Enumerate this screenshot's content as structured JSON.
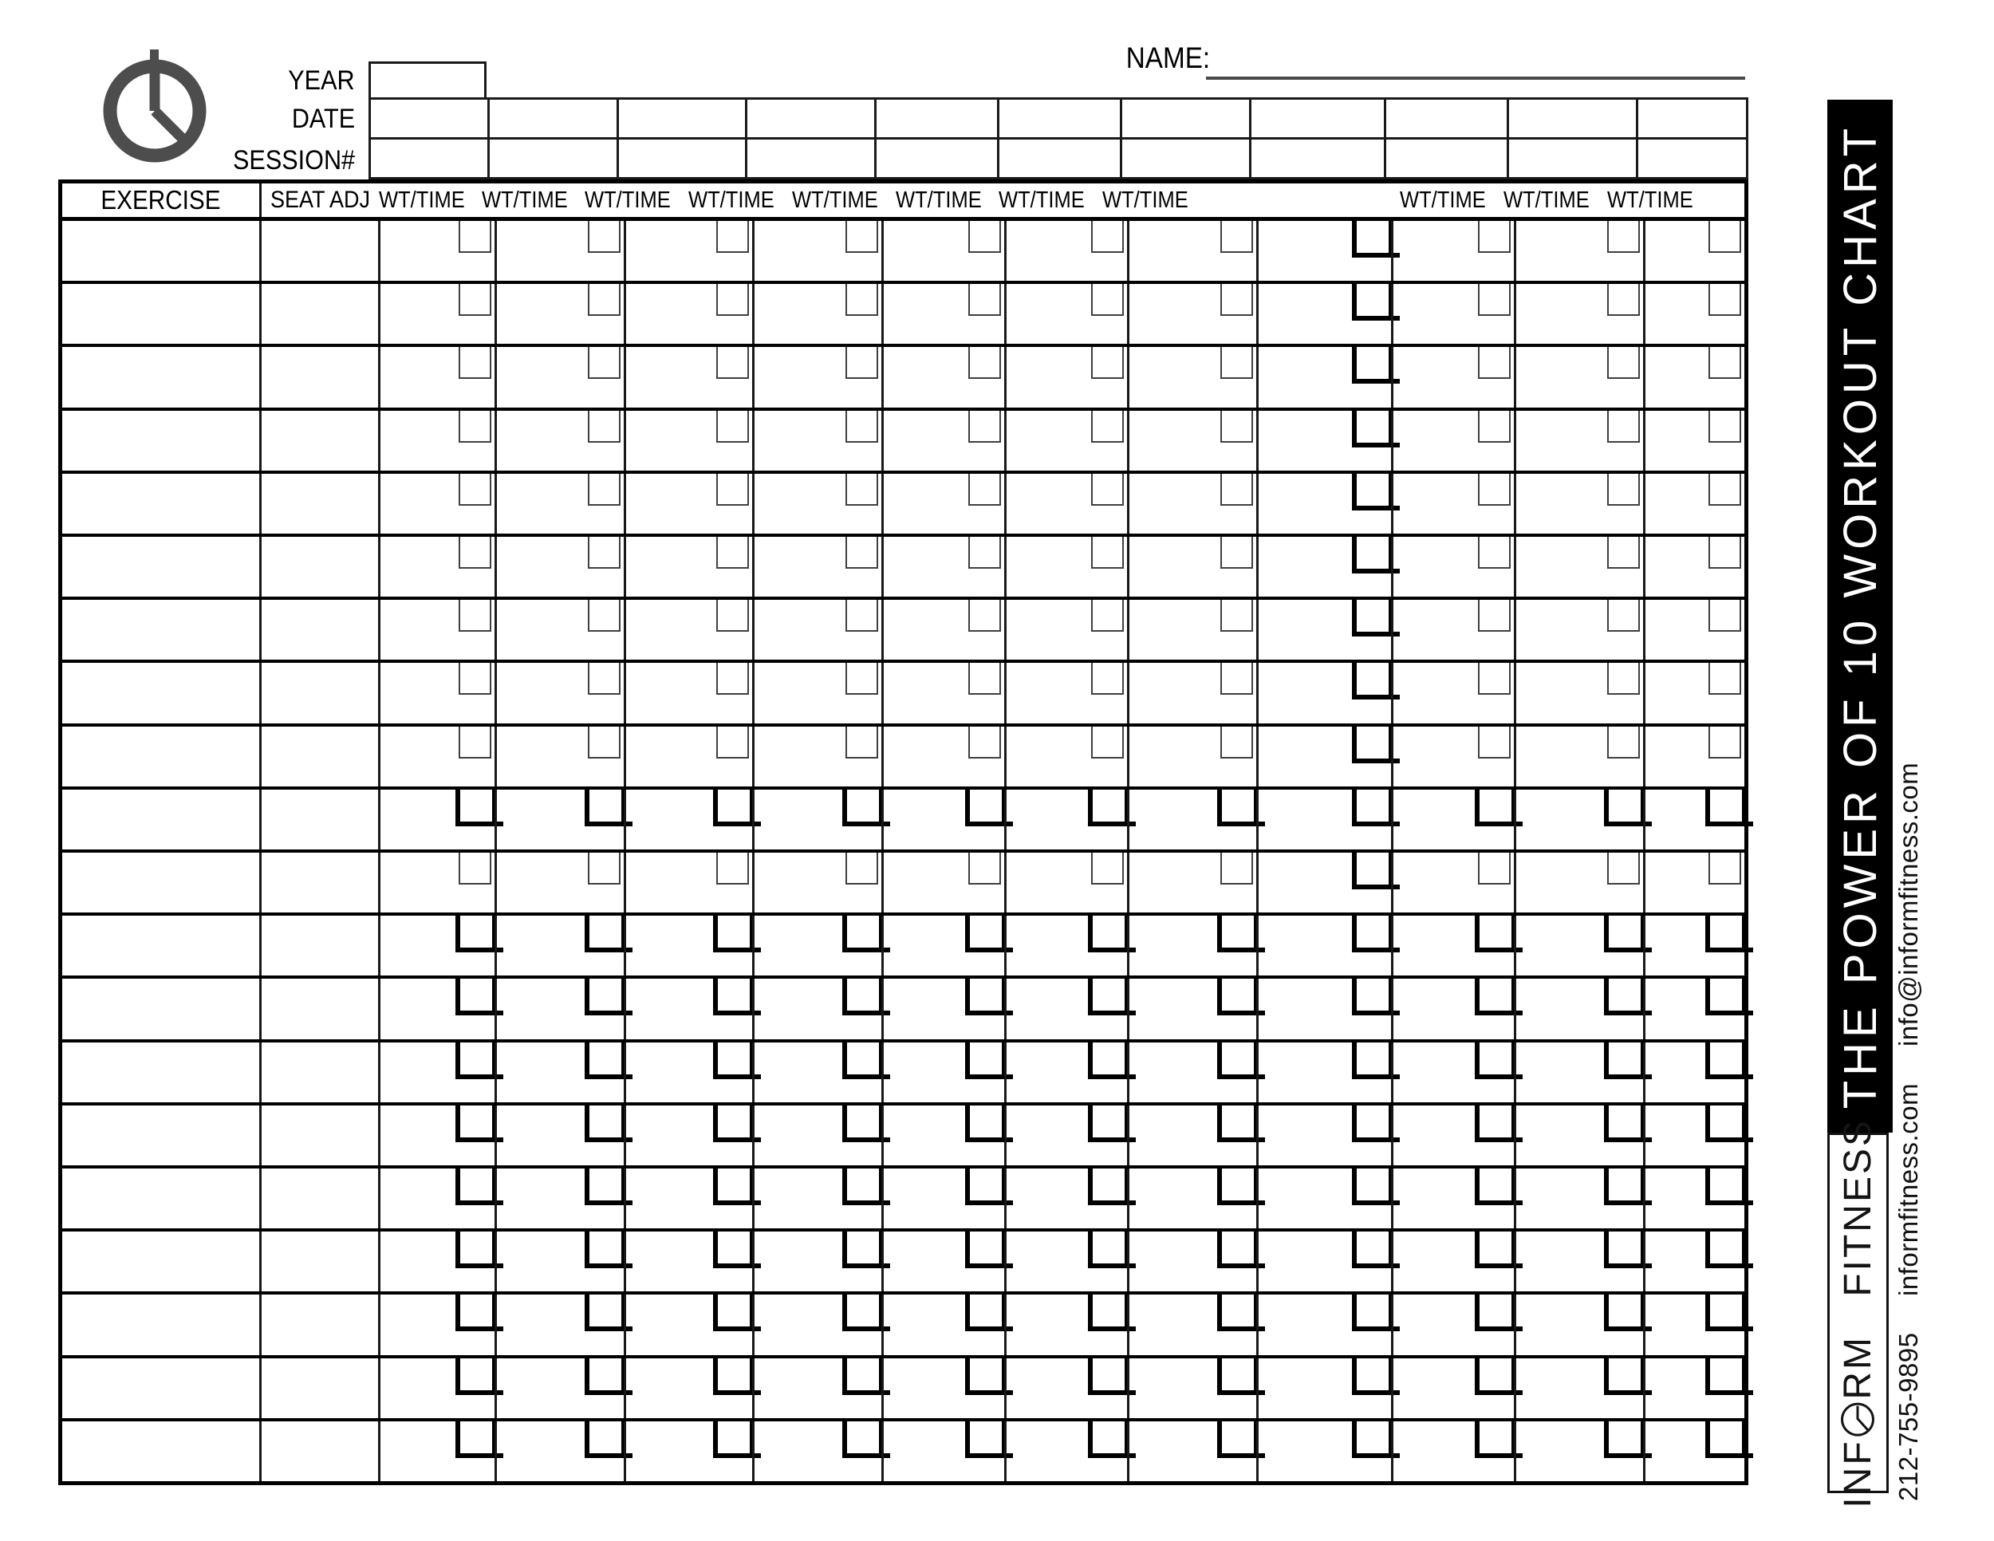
{
  "form": {
    "fields": {
      "year_label": "YEAR",
      "date_label": "DATE",
      "session_label": "SESSION#",
      "name_label": "NAME:"
    },
    "header": {
      "exercise": "EXERCISE",
      "seat_adj": "SEAT ADJ",
      "wt_time_labels": [
        "WT/TIME",
        "WT/TIME",
        "WT/TIME",
        "WT/TIME",
        "WT/TIME",
        "WT/TIME",
        "WT/TIME",
        "WT/TIME",
        "WT/TIME",
        "WT/TIME",
        "WT/TIME"
      ]
    },
    "grid": {
      "top_rows": 2,
      "top_columns": 11,
      "body_rows": 20,
      "data_columns": 11,
      "thick_bracket_rows": [
        10,
        12,
        13,
        14,
        15,
        16,
        17,
        18,
        19,
        20
      ],
      "thick_bracket_columns": [
        8
      ]
    }
  },
  "sidebar": {
    "banner_title": "THE POWER OF 10 WORKOUT CHART",
    "logo": {
      "part1": "INF",
      "o": "O",
      "part2": "RM",
      "word2": "FITNESS"
    },
    "contact": {
      "phone": "212-755-9895",
      "website": "informfitness.com",
      "email": "info@informfitness.com"
    }
  },
  "colors": {
    "ink": "#000000",
    "clock_gray": "#4d4d4d",
    "banner_bg": "#000000",
    "banner_text": "#ffffff"
  }
}
